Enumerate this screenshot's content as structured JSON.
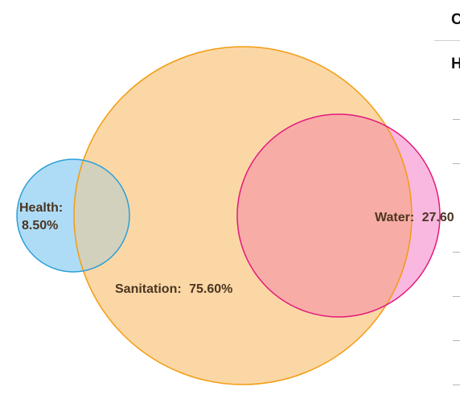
{
  "chart_data": {
    "type": "venn",
    "title": "",
    "sets": [
      {
        "name": "Health",
        "label": "Health:",
        "value": 8.5,
        "value_label": "8.50%",
        "fill": "#aedcf7",
        "stroke": "#2a9fd6"
      },
      {
        "name": "Sanitation",
        "label": "Sanitation:",
        "value": 75.6,
        "value_label": "75.60%",
        "fill": "#fbd7a6",
        "stroke": "#f39c12"
      },
      {
        "name": "Water",
        "label": "Water:",
        "value": 27.6,
        "value_label": "27.60",
        "fill": "#f9b8e0",
        "stroke": "#e2197b"
      }
    ],
    "overlaps": [
      {
        "sets": [
          "Health",
          "Sanitation"
        ],
        "fill": "#d2d1bd"
      },
      {
        "sets": [
          "Sanitation",
          "Water"
        ],
        "fill": "#f8aca6"
      }
    ],
    "label_color": "#4b3521"
  },
  "side_panel": {
    "heading_1": "C",
    "heading_2": "H"
  }
}
